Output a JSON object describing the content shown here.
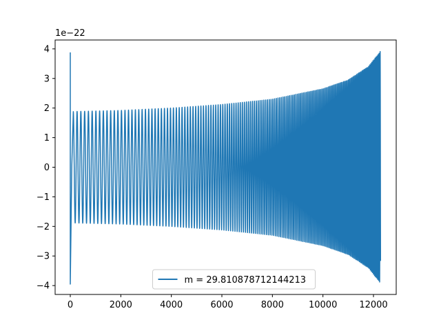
{
  "chart_data": {
    "type": "line",
    "title": "",
    "xlabel": "",
    "ylabel": "",
    "offset_label": "1e−22",
    "xlim": [
      -600,
      12900
    ],
    "ylim": [
      -4.3,
      4.3
    ],
    "x_ticks": [
      0,
      2000,
      4000,
      6000,
      8000,
      10000,
      12000
    ],
    "x_tick_labels": [
      "0",
      "2000",
      "4000",
      "6000",
      "8000",
      "10000",
      "12000"
    ],
    "y_ticks": [
      -4,
      -3,
      -2,
      -1,
      0,
      1,
      2,
      3,
      4
    ],
    "y_tick_labels": [
      "−4",
      "−3",
      "−2",
      "−1",
      "0",
      "1",
      "2",
      "3",
      "4"
    ],
    "grid": false,
    "legend_position": "lower center",
    "series": [
      {
        "name": "m = 29.810878712144213",
        "color": "#1f77b4",
        "description_of_shape": "chirp oscillation",
        "x_start": 0,
        "x_end": 12280,
        "amplitude_start": 1.88,
        "amplitude_end": 3.93,
        "envelope": [
          [
            0,
            1.88
          ],
          [
            2000,
            1.92
          ],
          [
            4000,
            2.0
          ],
          [
            6000,
            2.12
          ],
          [
            8000,
            2.3
          ],
          [
            10000,
            2.65
          ],
          [
            11000,
            2.95
          ],
          [
            11800,
            3.4
          ],
          [
            12280,
            3.93
          ]
        ],
        "initial_spike": {
          "x": 0,
          "y_max": 3.88,
          "y_min": -3.95
        }
      }
    ]
  }
}
